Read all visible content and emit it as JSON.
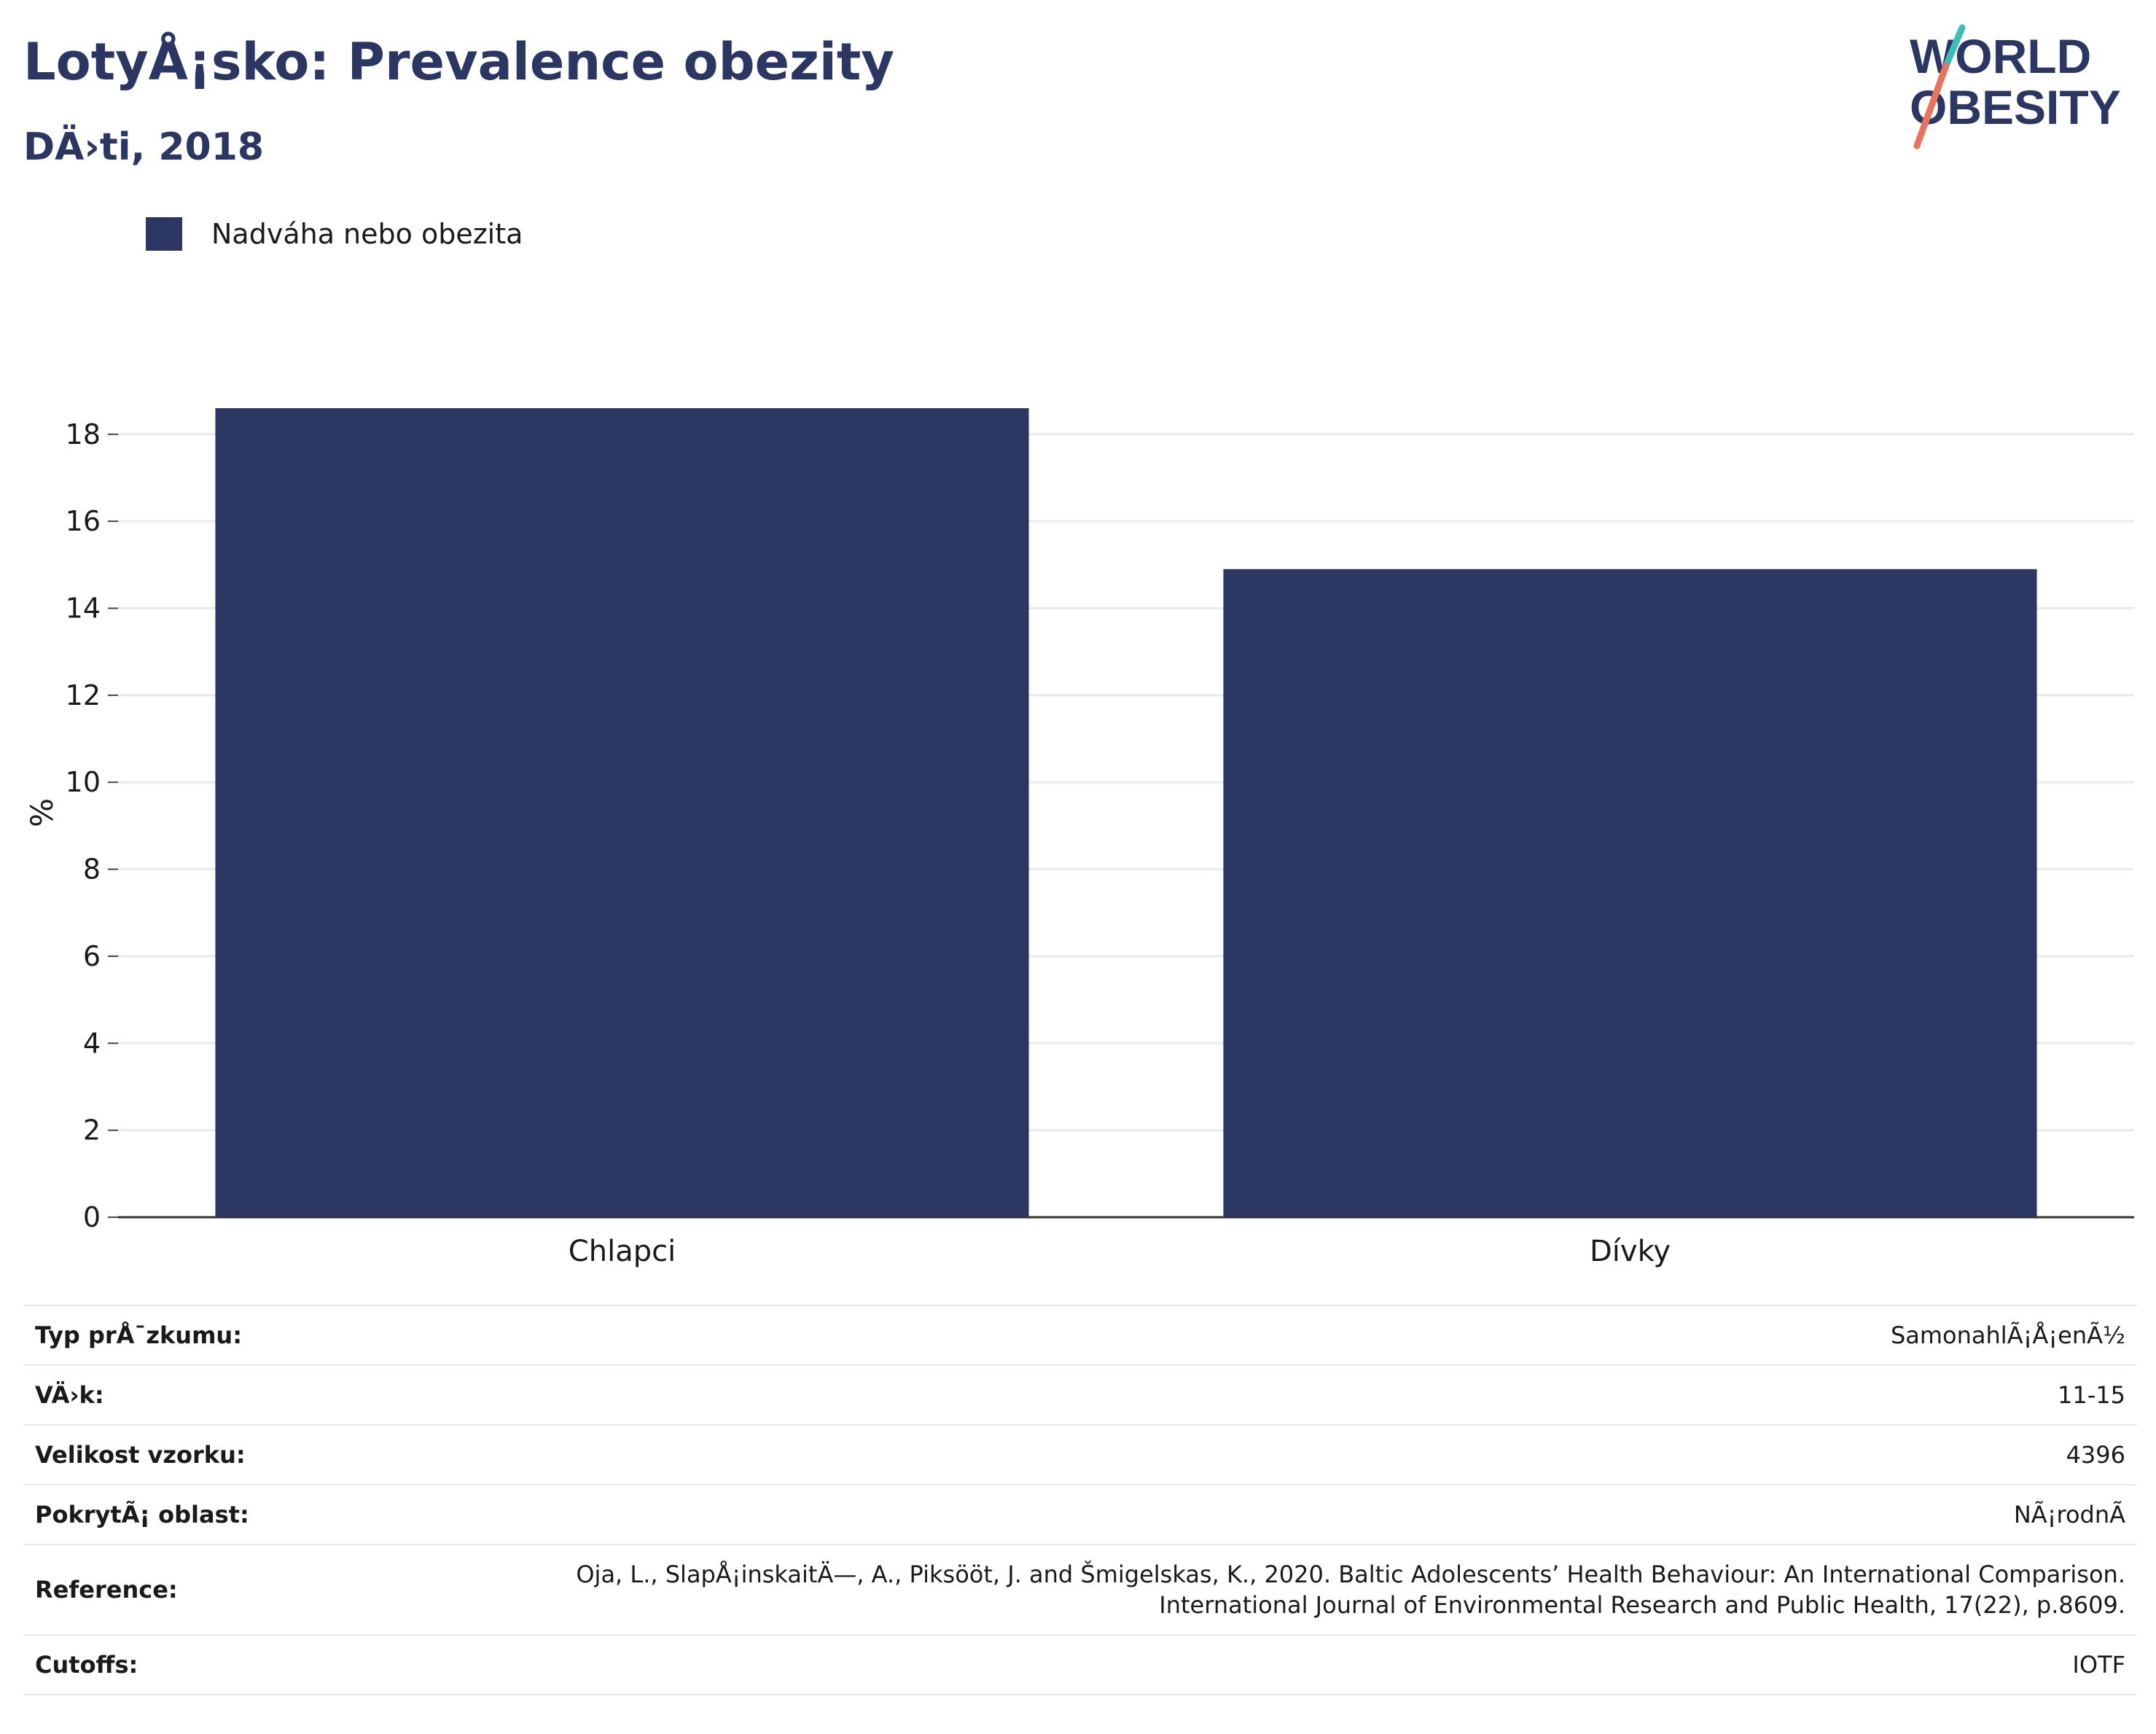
{
  "header": {
    "title": "LotyÅ¡sko: Prevalence obezity",
    "subtitle": "DÄ›ti, 2018"
  },
  "logo": {
    "line1": "WORLD",
    "line2": "OBESITY",
    "text_color": "#2b3663",
    "slash_top_color": "#3dbdb8",
    "slash_bottom_color": "#e8735f"
  },
  "legend": {
    "items": [
      {
        "label": "Nadváha nebo obezita",
        "color": "#2b3663"
      }
    ]
  },
  "chart_data": {
    "type": "bar",
    "categories": [
      "Chlapci",
      "Dívky"
    ],
    "series": [
      {
        "name": "Nadváha nebo obezita",
        "values": [
          18.6,
          14.9
        ],
        "color": "#2b3663"
      }
    ],
    "ylabel": "%",
    "xlabel": "",
    "ylim": [
      0,
      18.6
    ],
    "yticks": [
      0,
      2,
      4,
      6,
      8,
      10,
      12,
      14,
      16,
      18
    ],
    "grid": true,
    "legend_position": "top-left"
  },
  "info": {
    "rows": [
      {
        "key": "Typ prÅ¯zkumu:",
        "value": "SamonahlÃ¡Å¡enÃ½"
      },
      {
        "key": "VÄ›k:",
        "value": "11-15"
      },
      {
        "key": "Velikost vzorku:",
        "value": "4396"
      },
      {
        "key": "PokrytÃ¡ oblast:",
        "value": "NÃ¡rodnÃ"
      },
      {
        "key": "Reference:",
        "value": "Oja, L., SlapÅ¡inskaitÄ—, A., Piksööt, J. and Šmigelskas, K., 2020. Baltic Adolescents’ Health Behaviour: An International Comparison.",
        "value2": "International Journal of Environmental Research and Public Health, 17(22), p.8609."
      },
      {
        "key": "Cutoffs:",
        "value": "IOTF"
      }
    ]
  }
}
